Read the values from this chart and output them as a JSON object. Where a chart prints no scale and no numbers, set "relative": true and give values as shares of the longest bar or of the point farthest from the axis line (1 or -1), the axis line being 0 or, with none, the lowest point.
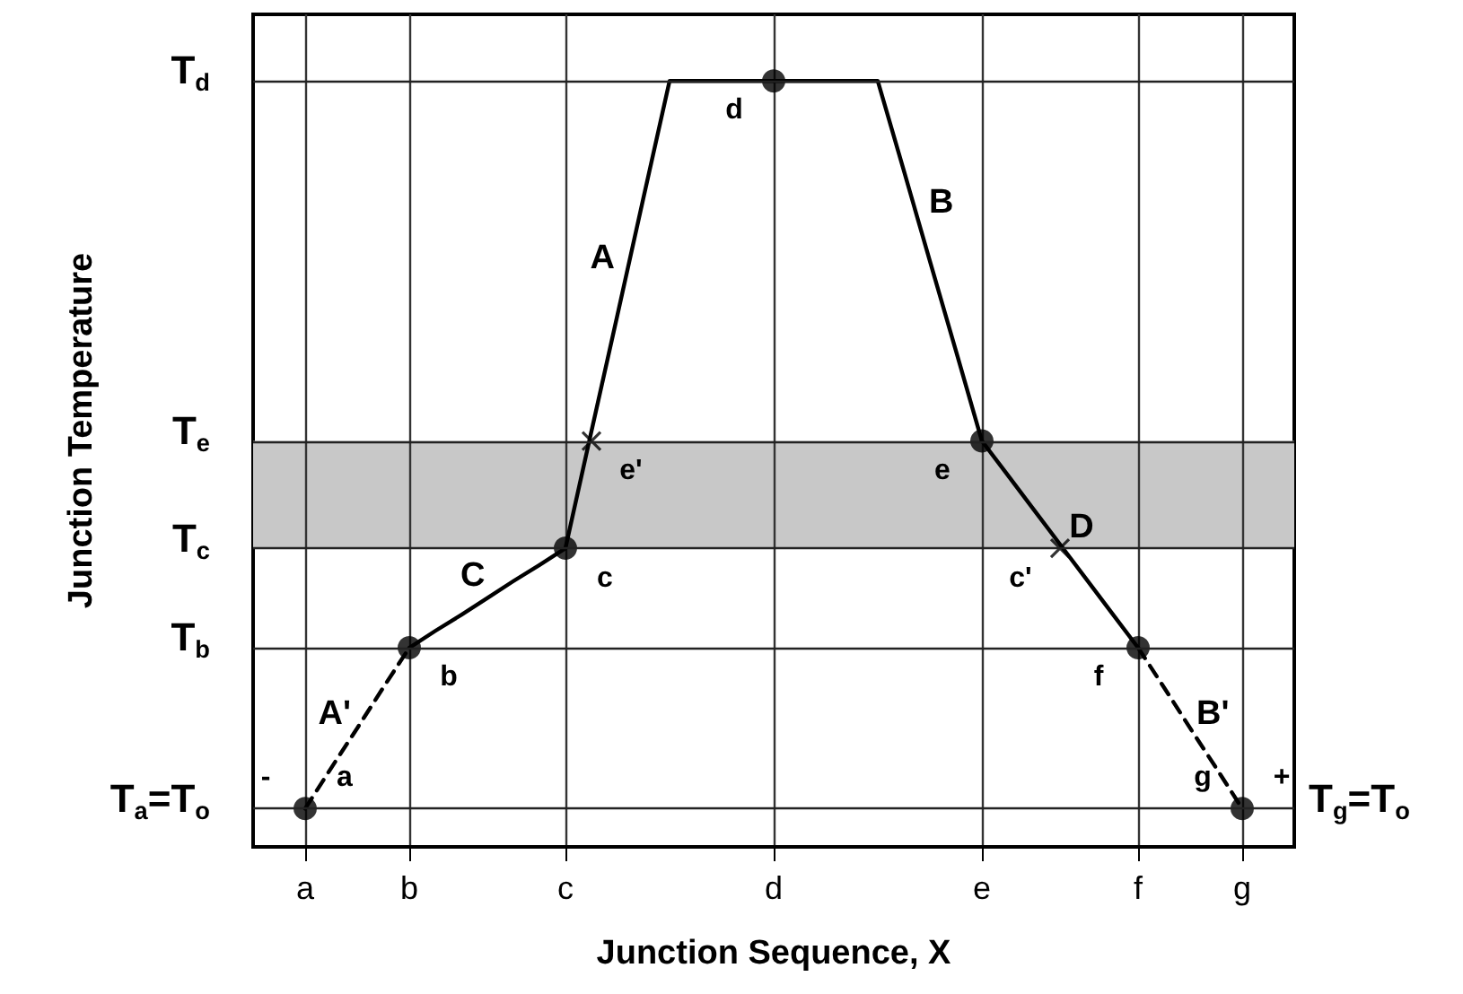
{
  "chart_data": {
    "type": "line",
    "xlabel": "Junction Sequence, X",
    "ylabel": "Junction Temperature",
    "relative": true,
    "categories": [
      null,
      null,
      "a",
      null,
      null,
      null,
      "b",
      null,
      null,
      null,
      null,
      null,
      "c",
      null,
      null,
      null,
      null,
      null,
      null,
      null,
      "d",
      null,
      null,
      null,
      null,
      null,
      null,
      null,
      "e",
      null,
      null,
      null,
      null,
      null,
      "f",
      null,
      null,
      null,
      "g",
      null,
      null
    ],
    "grid": "x",
    "marker": "none",
    "line_style": "solid",
    "series": [
      {
        "name": "A'",
        "color": "#000000",
        "line_style": "dashed",
        "values": [
          null,
          null,
          0.05,
          0.103,
          0.155,
          0.208,
          0.26,
          null,
          null,
          null,
          null,
          null,
          null,
          null,
          null,
          null,
          null,
          null,
          null,
          null,
          null,
          null,
          null,
          null,
          null,
          null,
          null,
          null,
          null,
          null,
          null,
          null,
          null,
          null,
          null,
          null,
          null,
          null,
          null,
          null,
          null
        ]
      },
      {
        "name": "C",
        "color": "#000000",
        "values": [
          null,
          null,
          null,
          null,
          null,
          null,
          0.26,
          0.282,
          0.303,
          0.325,
          0.347,
          0.368,
          0.39,
          null,
          null,
          null,
          null,
          null,
          null,
          null,
          null,
          null,
          null,
          null,
          null,
          null,
          null,
          null,
          null,
          null,
          null,
          null,
          null,
          null,
          null,
          null,
          null,
          null,
          null,
          null,
          null
        ]
      },
      {
        "name": "A",
        "color": "#000000",
        "values": [
          null,
          null,
          null,
          null,
          null,
          null,
          null,
          null,
          null,
          null,
          null,
          null,
          0.39,
          0.543,
          0.695,
          0.848,
          1,
          1,
          1,
          1,
          1,
          null,
          null,
          null,
          null,
          null,
          null,
          null,
          null,
          null,
          null,
          null,
          null,
          null,
          null,
          null,
          null,
          null,
          null,
          null,
          null
        ]
      },
      {
        "name": "B",
        "color": "#000000",
        "values": [
          null,
          null,
          null,
          null,
          null,
          null,
          null,
          null,
          null,
          null,
          null,
          null,
          null,
          null,
          null,
          null,
          null,
          null,
          null,
          null,
          1,
          1,
          1,
          1,
          1,
          0.883,
          0.765,
          0.648,
          0.53,
          null,
          null,
          null,
          null,
          null,
          null,
          null,
          null,
          null,
          null,
          null,
          null
        ]
      },
      {
        "name": "D",
        "color": "#000000",
        "values": [
          null,
          null,
          null,
          null,
          null,
          null,
          null,
          null,
          null,
          null,
          null,
          null,
          null,
          null,
          null,
          null,
          null,
          null,
          null,
          null,
          null,
          null,
          null,
          null,
          null,
          null,
          null,
          null,
          0.53,
          0.485,
          0.44,
          0.395,
          0.35,
          0.305,
          0.26,
          null,
          null,
          null,
          null,
          null,
          null
        ]
      },
      {
        "name": "B'",
        "color": "#000000",
        "line_style": "dashed",
        "values": [
          null,
          null,
          null,
          null,
          null,
          null,
          null,
          null,
          null,
          null,
          null,
          null,
          null,
          null,
          null,
          null,
          null,
          null,
          null,
          null,
          null,
          null,
          null,
          null,
          null,
          null,
          null,
          null,
          null,
          null,
          null,
          null,
          null,
          null,
          0.26,
          0.208,
          0.155,
          0.103,
          0.05,
          null,
          null
        ]
      },
      {
        "type": "scatter",
        "marker": "circle",
        "color": "#000000",
        "values": [
          null,
          null,
          0.05,
          null,
          null,
          null,
          0.26,
          null,
          null,
          null,
          null,
          null,
          0.39,
          null,
          null,
          null,
          null,
          null,
          null,
          null,
          1,
          null,
          null,
          null,
          null,
          null,
          null,
          null,
          0.53,
          null,
          null,
          null,
          null,
          null,
          0.26,
          null,
          null,
          null,
          0.05,
          null,
          null
        ]
      },
      {
        "type": "scatter",
        "name": "e'",
        "marker": "cross",
        "color": "#000000",
        "values": [
          null,
          null,
          null,
          null,
          null,
          null,
          null,
          null,
          null,
          null,
          null,
          null,
          null,
          0.53,
          null,
          null,
          null,
          null,
          null,
          null,
          null,
          null,
          null,
          null,
          null,
          null,
          null,
          null,
          null,
          null,
          null,
          null,
          null,
          null,
          null,
          null,
          null,
          null,
          null,
          null,
          null
        ]
      },
      {
        "type": "scatter",
        "name": "c'",
        "marker": "cross",
        "color": "#000000",
        "values": [
          null,
          null,
          null,
          null,
          null,
          null,
          null,
          null,
          null,
          null,
          null,
          null,
          null,
          null,
          null,
          null,
          null,
          null,
          null,
          null,
          null,
          null,
          null,
          null,
          null,
          null,
          null,
          null,
          null,
          null,
          null,
          0.39,
          null,
          null,
          null,
          null,
          null,
          null,
          null,
          null,
          null
        ]
      }
    ],
    "ref_lines": [
      {
        "axis": "y",
        "value": 1,
        "label": "T$_{d}$"
      },
      {
        "axis": "y",
        "value": 0.53,
        "label": "T$_{e}$"
      },
      {
        "axis": "y",
        "value": 0.39,
        "label": "T$_{c}$"
      },
      {
        "axis": "y",
        "value": 0.26,
        "label": "T$_{b}$"
      },
      {
        "axis": "y",
        "value": 0.05,
        "label": "T$_{a}$=T$_{o}$"
      }
    ],
    "bands": [
      {
        "axis": "y",
        "from": 0.39,
        "to": 0.53,
        "color": "#c8c8c8"
      }
    ],
    "annotations": [
      {
        "text": "a",
        "x": "a",
        "y": 0.05
      },
      {
        "text": "-",
        "x": "a",
        "y": 0.05
      },
      {
        "text": "b",
        "x": "b",
        "y": 0.26
      },
      {
        "text": "c",
        "x": "c",
        "y": 0.39
      },
      {
        "text": "d",
        "x": "d",
        "y": 1
      },
      {
        "text": "e",
        "x": "e",
        "y": 0.53
      },
      {
        "text": "f",
        "x": "f",
        "y": 0.26
      },
      {
        "text": "g",
        "x": "g",
        "y": 0.05
      },
      {
        "text": "+",
        "x": "g",
        "y": 0.05
      },
      {
        "text": "T$_{g}$=T$_{o}$",
        "x": "g",
        "y": 0.05
      }
    ]
  }
}
